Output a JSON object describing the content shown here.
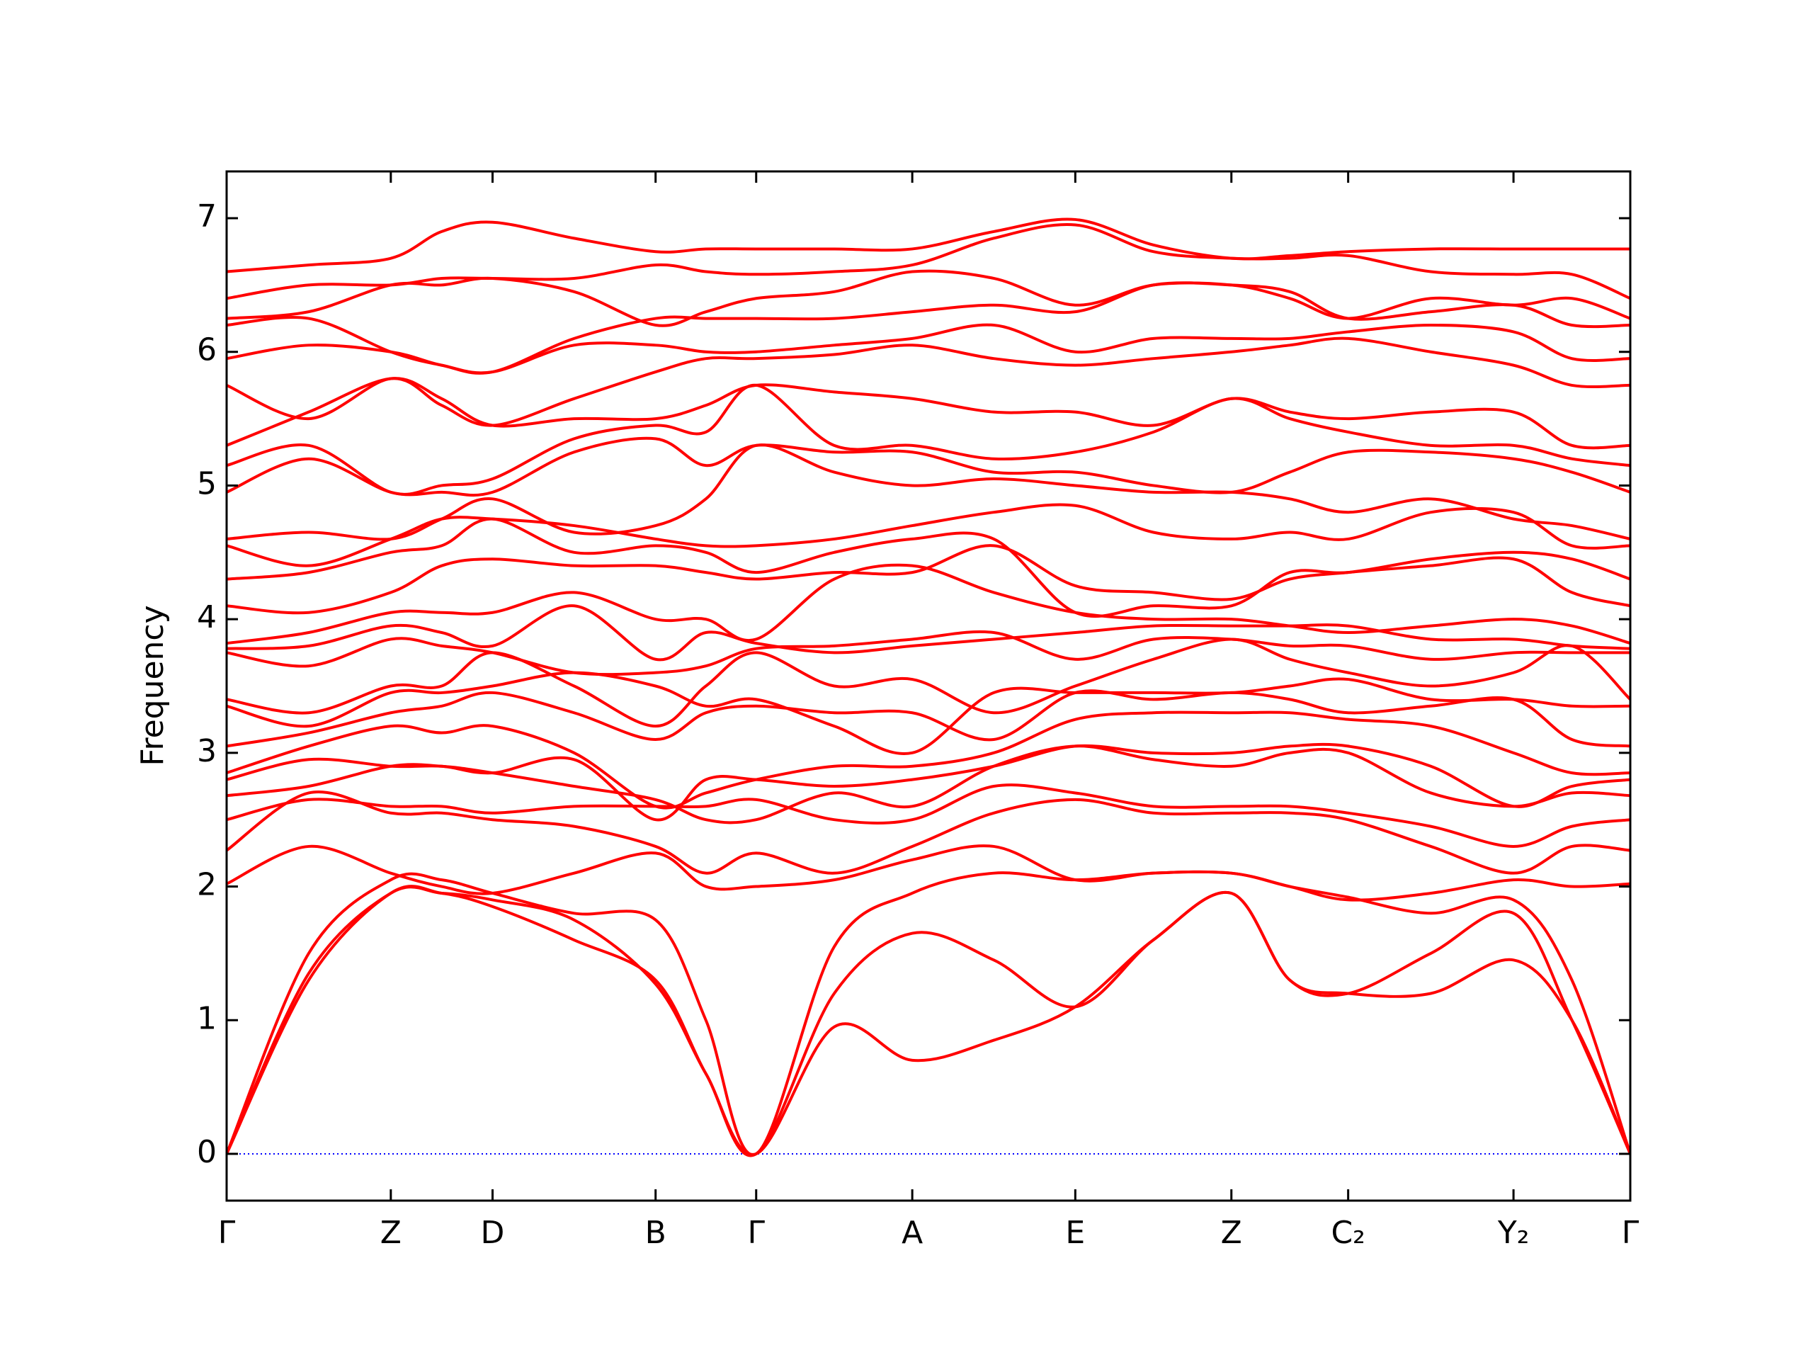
{
  "chart_data": {
    "type": "line",
    "ylabel": "Frequency",
    "color": "#ff0000",
    "hline": {
      "value": 0,
      "color": "#0000ff"
    },
    "x": [
      0,
      0.071,
      0.142,
      0.186,
      0.23,
      0.3005,
      0.371,
      0.4145,
      0.458,
      0.5255,
      0.593,
      0.6635,
      0.734,
      0.8015,
      0.869,
      0.9195,
      0.97,
      1.0415,
      1.113,
      1.1635,
      1.214
    ],
    "xlim": [
      0,
      1.214
    ],
    "xticks": [
      {
        "value": 0,
        "label": "Γ"
      },
      {
        "value": 0.142,
        "label": "Z"
      },
      {
        "value": 0.23,
        "label": "D"
      },
      {
        "value": 0.371,
        "label": "B"
      },
      {
        "value": 0.458,
        "label": "Γ"
      },
      {
        "value": 0.593,
        "label": "A"
      },
      {
        "value": 0.734,
        "label": "E"
      },
      {
        "value": 0.869,
        "label": "Z"
      },
      {
        "value": 0.97,
        "label": "C₂"
      },
      {
        "value": 1.113,
        "label": "Y₂"
      },
      {
        "value": 1.214,
        "label": "Γ"
      }
    ],
    "ylim": [
      -0.35,
      7.35
    ],
    "yticks": [
      0,
      1,
      2,
      3,
      4,
      5,
      6,
      7
    ],
    "series": [
      {
        "values": [
          0,
          1.3,
          1.95,
          1.95,
          1.85,
          1.6,
          1.3,
          0.6,
          0,
          0.95,
          0.7,
          0.85,
          1.1,
          1.6,
          1.95,
          1.3,
          1.2,
          1.2,
          1.45,
          1.0,
          0
        ]
      },
      {
        "values": [
          0,
          1.35,
          1.95,
          1.95,
          1.9,
          1.75,
          1.27,
          0.6,
          0,
          1.2,
          1.65,
          1.45,
          1.1,
          1.6,
          1.95,
          1.3,
          1.2,
          1.5,
          1.8,
          1.0,
          0
        ]
      },
      {
        "values": [
          0,
          1.5,
          2.05,
          2.05,
          1.95,
          1.8,
          1.75,
          1.0,
          0,
          1.55,
          1.95,
          2.1,
          2.05,
          2.1,
          2.1,
          2.0,
          1.92,
          1.8,
          1.9,
          1.3,
          0
        ]
      },
      {
        "values": [
          2.02,
          2.3,
          2.1,
          2.0,
          1.95,
          2.1,
          2.25,
          2.0,
          2.0,
          2.05,
          2.2,
          2.3,
          2.05,
          2.1,
          2.1,
          2.0,
          1.9,
          1.95,
          2.05,
          2.0,
          2.02
        ]
      },
      {
        "values": [
          2.27,
          2.7,
          2.55,
          2.55,
          2.5,
          2.45,
          2.3,
          2.1,
          2.25,
          2.1,
          2.3,
          2.55,
          2.65,
          2.55,
          2.55,
          2.55,
          2.5,
          2.3,
          2.1,
          2.3,
          2.27
        ]
      },
      {
        "values": [
          2.5,
          2.65,
          2.6,
          2.6,
          2.55,
          2.6,
          2.6,
          2.6,
          2.65,
          2.5,
          2.5,
          2.75,
          2.7,
          2.6,
          2.6,
          2.6,
          2.55,
          2.45,
          2.3,
          2.45,
          2.5
        ]
      },
      {
        "values": [
          2.68,
          2.75,
          2.9,
          2.9,
          2.85,
          2.75,
          2.65,
          2.5,
          2.5,
          2.7,
          2.6,
          2.9,
          3.05,
          2.95,
          2.9,
          3.0,
          3.0,
          2.7,
          2.6,
          2.7,
          2.68
        ]
      },
      {
        "values": [
          2.8,
          2.95,
          2.9,
          2.9,
          2.85,
          2.95,
          2.5,
          2.8,
          2.8,
          2.75,
          2.8,
          2.9,
          3.05,
          3.0,
          3.0,
          3.05,
          3.05,
          2.9,
          2.6,
          2.75,
          2.8
        ]
      },
      {
        "values": [
          2.85,
          3.05,
          3.2,
          3.15,
          3.2,
          3.0,
          2.6,
          2.7,
          2.8,
          2.9,
          2.9,
          3.0,
          3.25,
          3.3,
          3.3,
          3.3,
          3.25,
          3.2,
          3.0,
          2.85,
          2.85
        ]
      },
      {
        "values": [
          3.05,
          3.15,
          3.3,
          3.35,
          3.45,
          3.3,
          3.1,
          3.3,
          3.35,
          3.3,
          3.3,
          3.1,
          3.45,
          3.4,
          3.45,
          3.4,
          3.3,
          3.35,
          3.4,
          3.1,
          3.05
        ]
      },
      {
        "values": [
          3.35,
          3.2,
          3.45,
          3.45,
          3.5,
          3.6,
          3.5,
          3.35,
          3.4,
          3.2,
          3.0,
          3.45,
          3.45,
          3.45,
          3.45,
          3.5,
          3.55,
          3.4,
          3.4,
          3.35,
          3.35
        ]
      },
      {
        "values": [
          3.4,
          3.3,
          3.5,
          3.5,
          3.75,
          3.5,
          3.2,
          3.5,
          3.75,
          3.5,
          3.55,
          3.3,
          3.5,
          3.7,
          3.85,
          3.7,
          3.6,
          3.5,
          3.6,
          3.8,
          3.4
        ]
      },
      {
        "values": [
          3.75,
          3.65,
          3.85,
          3.8,
          3.75,
          3.6,
          3.6,
          3.65,
          3.78,
          3.8,
          3.85,
          3.9,
          3.7,
          3.85,
          3.85,
          3.8,
          3.8,
          3.7,
          3.75,
          3.75,
          3.75
        ]
      },
      {
        "values": [
          3.78,
          3.8,
          3.95,
          3.9,
          3.8,
          4.1,
          3.7,
          3.9,
          3.82,
          3.75,
          3.8,
          3.85,
          3.9,
          3.95,
          3.95,
          3.95,
          3.95,
          3.85,
          3.85,
          3.8,
          3.78
        ]
      },
      {
        "values": [
          3.82,
          3.9,
          4.05,
          4.05,
          4.05,
          4.2,
          4.0,
          4.0,
          3.85,
          4.3,
          4.4,
          4.2,
          4.05,
          4.0,
          4.0,
          3.95,
          3.9,
          3.95,
          4.0,
          3.95,
          3.82
        ]
      },
      {
        "values": [
          4.1,
          4.05,
          4.2,
          4.4,
          4.45,
          4.4,
          4.4,
          4.35,
          4.3,
          4.35,
          4.35,
          4.55,
          4.25,
          4.2,
          4.15,
          4.3,
          4.35,
          4.4,
          4.45,
          4.2,
          4.1
        ]
      },
      {
        "values": [
          4.3,
          4.35,
          4.5,
          4.55,
          4.75,
          4.5,
          4.55,
          4.5,
          4.35,
          4.5,
          4.6,
          4.6,
          4.05,
          4.1,
          4.1,
          4.35,
          4.35,
          4.45,
          4.5,
          4.45,
          4.3
        ]
      },
      {
        "values": [
          4.55,
          4.4,
          4.6,
          4.75,
          4.75,
          4.7,
          4.6,
          4.55,
          4.55,
          4.6,
          4.7,
          4.8,
          4.85,
          4.65,
          4.6,
          4.65,
          4.6,
          4.8,
          4.8,
          4.55,
          4.55
        ]
      },
      {
        "values": [
          4.6,
          4.65,
          4.6,
          4.75,
          4.9,
          4.65,
          4.7,
          4.9,
          5.3,
          5.1,
          5.0,
          5.05,
          5.0,
          4.95,
          4.95,
          4.9,
          4.8,
          4.9,
          4.75,
          4.7,
          4.6
        ]
      },
      {
        "values": [
          4.95,
          5.2,
          4.95,
          4.95,
          4.95,
          5.25,
          5.35,
          5.15,
          5.3,
          5.25,
          5.25,
          5.1,
          5.1,
          5.0,
          4.95,
          5.1,
          5.25,
          5.25,
          5.2,
          5.1,
          4.95
        ]
      },
      {
        "values": [
          5.15,
          5.3,
          4.95,
          5.0,
          5.05,
          5.35,
          5.45,
          5.4,
          5.75,
          5.3,
          5.3,
          5.2,
          5.25,
          5.4,
          5.65,
          5.5,
          5.4,
          5.3,
          5.3,
          5.2,
          5.15
        ]
      },
      {
        "values": [
          5.3,
          5.55,
          5.8,
          5.65,
          5.45,
          5.5,
          5.5,
          5.6,
          5.75,
          5.7,
          5.65,
          5.55,
          5.55,
          5.45,
          5.65,
          5.55,
          5.5,
          5.55,
          5.55,
          5.3,
          5.3
        ]
      },
      {
        "values": [
          5.75,
          5.5,
          5.8,
          5.6,
          5.45,
          5.65,
          5.85,
          5.95,
          5.95,
          5.98,
          6.05,
          5.95,
          5.9,
          5.95,
          6.0,
          6.05,
          6.1,
          6.0,
          5.9,
          5.75,
          5.75
        ]
      },
      {
        "values": [
          5.95,
          6.05,
          6.0,
          5.9,
          5.85,
          6.05,
          6.05,
          6.0,
          6.0,
          6.05,
          6.1,
          6.2,
          6.0,
          6.1,
          6.1,
          6.1,
          6.15,
          6.2,
          6.15,
          5.95,
          5.95
        ]
      },
      {
        "values": [
          6.2,
          6.25,
          6.0,
          5.9,
          5.85,
          6.1,
          6.25,
          6.25,
          6.25,
          6.25,
          6.3,
          6.35,
          6.3,
          6.5,
          6.5,
          6.45,
          6.25,
          6.3,
          6.35,
          6.2,
          6.2
        ]
      },
      {
        "values": [
          6.25,
          6.3,
          6.5,
          6.5,
          6.55,
          6.45,
          6.2,
          6.3,
          6.4,
          6.45,
          6.6,
          6.55,
          6.35,
          6.5,
          6.5,
          6.4,
          6.25,
          6.4,
          6.35,
          6.4,
          6.25
        ]
      },
      {
        "values": [
          6.4,
          6.5,
          6.5,
          6.55,
          6.55,
          6.55,
          6.65,
          6.6,
          6.58,
          6.6,
          6.65,
          6.85,
          6.95,
          6.75,
          6.7,
          6.7,
          6.72,
          6.6,
          6.58,
          6.58,
          6.4
        ]
      },
      {
        "values": [
          6.6,
          6.65,
          6.7,
          6.9,
          6.97,
          6.85,
          6.75,
          6.77,
          6.77,
          6.77,
          6.77,
          6.9,
          6.99,
          6.8,
          6.7,
          6.72,
          6.75,
          6.77,
          6.77,
          6.77,
          6.77
        ]
      }
    ]
  }
}
